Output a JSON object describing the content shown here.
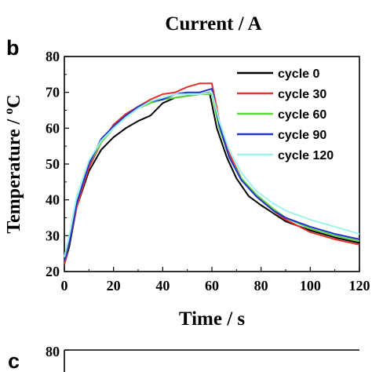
{
  "top_label": "Current / A",
  "panel_b_letter": "b",
  "panel_c_letter": "c",
  "chart_data": [
    {
      "type": "line",
      "panel": "b",
      "xlabel": "Time / s",
      "ylabel": "Temperature / ",
      "ylabel_unit_sup": "o",
      "ylabel_unit": "C",
      "xlim": [
        0,
        120
      ],
      "ylim": [
        20,
        80
      ],
      "xticks": [
        0,
        20,
        40,
        60,
        80,
        100,
        120
      ],
      "yticks": [
        20,
        30,
        40,
        50,
        60,
        70,
        80
      ],
      "grid": false,
      "legend_position": "top-right",
      "series": [
        {
          "name": "cycle 0",
          "color": "#000000",
          "points": [
            [
              0,
              22
            ],
            [
              2,
              27
            ],
            [
              5,
              38
            ],
            [
              10,
              48
            ],
            [
              15,
              54
            ],
            [
              20,
              57.5
            ],
            [
              25,
              60
            ],
            [
              30,
              62
            ],
            [
              35,
              63.5
            ],
            [
              40,
              67
            ],
            [
              45,
              68.5
            ],
            [
              50,
              69
            ],
            [
              55,
              69.5
            ],
            [
              59,
              70
            ],
            [
              62,
              60
            ],
            [
              66,
              52
            ],
            [
              70,
              46
            ],
            [
              75,
              41
            ],
            [
              80,
              38.5
            ],
            [
              90,
              34
            ],
            [
              100,
              31.5
            ],
            [
              110,
              29.5
            ],
            [
              120,
              28
            ]
          ]
        },
        {
          "name": "cycle 30",
          "color": "#e8302a",
          "points": [
            [
              0,
              22
            ],
            [
              2,
              28
            ],
            [
              5,
              38
            ],
            [
              10,
              49
            ],
            [
              15,
              56
            ],
            [
              20,
              61
            ],
            [
              25,
              64
            ],
            [
              30,
              66
            ],
            [
              35,
              68
            ],
            [
              40,
              69.5
            ],
            [
              45,
              70
            ],
            [
              50,
              71.5
            ],
            [
              55,
              72.5
            ],
            [
              60,
              72.5
            ],
            [
              63,
              62
            ],
            [
              67,
              53
            ],
            [
              72,
              46
            ],
            [
              78,
              41
            ],
            [
              85,
              37
            ],
            [
              90,
              34.5
            ],
            [
              100,
              31
            ],
            [
              110,
              29
            ],
            [
              120,
              27.5
            ]
          ]
        },
        {
          "name": "cycle 60",
          "color": "#5cd63a",
          "points": [
            [
              0,
              23
            ],
            [
              2,
              28
            ],
            [
              5,
              39
            ],
            [
              10,
              50
            ],
            [
              15,
              56
            ],
            [
              20,
              60
            ],
            [
              25,
              63
            ],
            [
              30,
              65.5
            ],
            [
              35,
              67
            ],
            [
              40,
              68
            ],
            [
              45,
              68.5
            ],
            [
              50,
              69
            ],
            [
              55,
              69.5
            ],
            [
              60,
              69.5
            ],
            [
              63,
              60
            ],
            [
              67,
              52
            ],
            [
              72,
              46
            ],
            [
              78,
              41.5
            ],
            [
              85,
              37.5
            ],
            [
              90,
              35
            ],
            [
              100,
              32
            ],
            [
              110,
              30
            ],
            [
              120,
              28.5
            ]
          ]
        },
        {
          "name": "cycle 90",
          "color": "#2233cc",
          "points": [
            [
              0,
              23
            ],
            [
              2,
              28
            ],
            [
              5,
              39
            ],
            [
              10,
              50
            ],
            [
              15,
              57
            ],
            [
              20,
              60.5
            ],
            [
              25,
              63.5
            ],
            [
              30,
              66
            ],
            [
              35,
              67.5
            ],
            [
              40,
              68
            ],
            [
              45,
              69.5
            ],
            [
              50,
              70
            ],
            [
              55,
              70
            ],
            [
              60,
              71
            ],
            [
              63,
              61
            ],
            [
              67,
              52
            ],
            [
              72,
              45.5
            ],
            [
              78,
              41
            ],
            [
              85,
              37
            ],
            [
              90,
              35
            ],
            [
              100,
              32.5
            ],
            [
              110,
              30.5
            ],
            [
              120,
              29
            ]
          ]
        },
        {
          "name": "cycle 120",
          "color": "#9ff2ee",
          "points": [
            [
              0,
              24
            ],
            [
              2,
              30
            ],
            [
              5,
              41
            ],
            [
              10,
              51
            ],
            [
              15,
              56.5
            ],
            [
              20,
              60
            ],
            [
              25,
              63
            ],
            [
              30,
              65.5
            ],
            [
              35,
              67.5
            ],
            [
              40,
              68.5
            ],
            [
              45,
              69.5
            ],
            [
              50,
              69.5
            ],
            [
              55,
              69.5
            ],
            [
              60,
              70
            ],
            [
              63,
              62
            ],
            [
              67,
              54
            ],
            [
              72,
              47.5
            ],
            [
              78,
              42.5
            ],
            [
              85,
              39
            ],
            [
              90,
              37
            ],
            [
              100,
              34.5
            ],
            [
              110,
              32.5
            ],
            [
              120,
              30.5
            ]
          ]
        }
      ]
    },
    {
      "type": "line",
      "panel": "c",
      "ylim_top_tick": 80,
      "series": []
    }
  ]
}
